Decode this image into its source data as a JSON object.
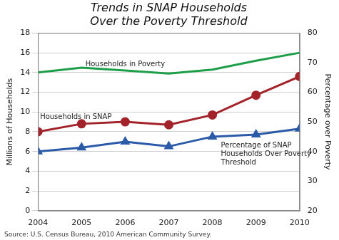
{
  "chart_data": {
    "type": "line",
    "title": "Trends in SNAP Households Over the Poverty Threshold",
    "xlabel": null,
    "ylabel": "Millions of Households",
    "y2label": "Percentage over Poverty",
    "source": "Source: U.S. Census Bureau, 2010 American Community Survey.",
    "categories": [
      "2004",
      "2005",
      "2006",
      "2007",
      "2008",
      "2009",
      "2010"
    ],
    "series": [
      {
        "name": "Households in Poverty",
        "color": "#1f9e4a",
        "marker": "none",
        "axis": "y",
        "values": [
          14.0,
          14.5,
          14.2,
          13.9,
          14.3,
          15.2,
          16.0
        ]
      },
      {
        "name": "Households in SNAP",
        "color": "#a3232a",
        "marker": "circle",
        "axis": "y",
        "values": [
          8.0,
          8.8,
          9.0,
          8.7,
          9.7,
          11.7,
          13.6
        ]
      },
      {
        "name": "Percentage of SNAP Households Over Poverty Threshold",
        "color": "#2b5ba8",
        "marker": "triangle",
        "axis": "y2",
        "values": [
          40.0,
          41.3,
          43.3,
          41.7,
          45.0,
          45.7,
          47.7
        ]
      }
    ],
    "ylim": [
      0,
      18
    ],
    "yticks": [
      0,
      2,
      4,
      6,
      8,
      10,
      12,
      14,
      16,
      18
    ],
    "y2lim": [
      20,
      80
    ],
    "y2ticks": [
      20,
      30,
      40,
      50,
      60,
      70,
      80
    ],
    "grid": true
  }
}
